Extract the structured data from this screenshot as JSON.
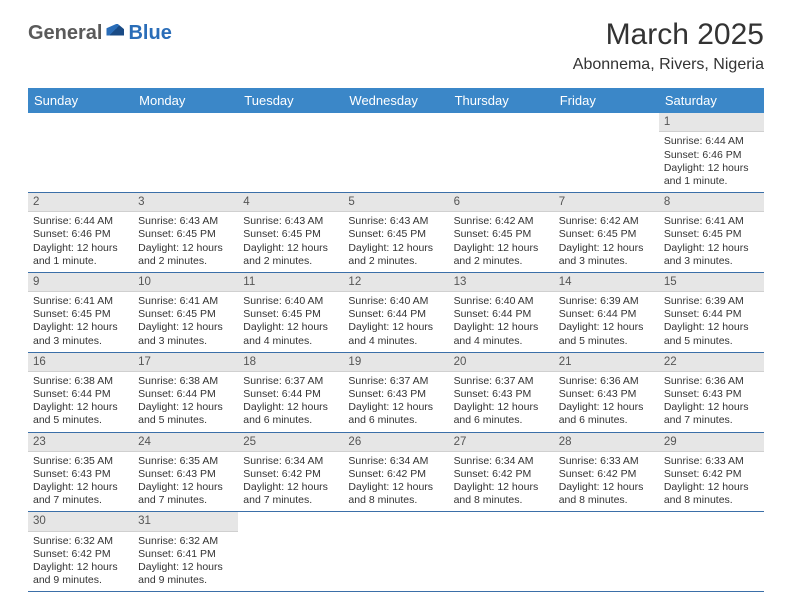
{
  "logo": {
    "part1": "General",
    "part2": "Blue"
  },
  "title": "March 2025",
  "location": "Abonnema, Rivers, Nigeria",
  "colors": {
    "header_bg": "#3b87c8",
    "header_text": "#ffffff",
    "grid_border": "#3b6fa8",
    "daynum_bg": "#e6e6e6",
    "logo_gray": "#5a5a5a",
    "logo_blue": "#2a6db8"
  },
  "dayNames": [
    "Sunday",
    "Monday",
    "Tuesday",
    "Wednesday",
    "Thursday",
    "Friday",
    "Saturday"
  ],
  "weeks": [
    [
      {
        "n": "",
        "sr": "",
        "ss": "",
        "dl": ""
      },
      {
        "n": "",
        "sr": "",
        "ss": "",
        "dl": ""
      },
      {
        "n": "",
        "sr": "",
        "ss": "",
        "dl": ""
      },
      {
        "n": "",
        "sr": "",
        "ss": "",
        "dl": ""
      },
      {
        "n": "",
        "sr": "",
        "ss": "",
        "dl": ""
      },
      {
        "n": "",
        "sr": "",
        "ss": "",
        "dl": ""
      },
      {
        "n": "1",
        "sr": "Sunrise: 6:44 AM",
        "ss": "Sunset: 6:46 PM",
        "dl": "Daylight: 12 hours and 1 minute."
      }
    ],
    [
      {
        "n": "2",
        "sr": "Sunrise: 6:44 AM",
        "ss": "Sunset: 6:46 PM",
        "dl": "Daylight: 12 hours and 1 minute."
      },
      {
        "n": "3",
        "sr": "Sunrise: 6:43 AM",
        "ss": "Sunset: 6:45 PM",
        "dl": "Daylight: 12 hours and 2 minutes."
      },
      {
        "n": "4",
        "sr": "Sunrise: 6:43 AM",
        "ss": "Sunset: 6:45 PM",
        "dl": "Daylight: 12 hours and 2 minutes."
      },
      {
        "n": "5",
        "sr": "Sunrise: 6:43 AM",
        "ss": "Sunset: 6:45 PM",
        "dl": "Daylight: 12 hours and 2 minutes."
      },
      {
        "n": "6",
        "sr": "Sunrise: 6:42 AM",
        "ss": "Sunset: 6:45 PM",
        "dl": "Daylight: 12 hours and 2 minutes."
      },
      {
        "n": "7",
        "sr": "Sunrise: 6:42 AM",
        "ss": "Sunset: 6:45 PM",
        "dl": "Daylight: 12 hours and 3 minutes."
      },
      {
        "n": "8",
        "sr": "Sunrise: 6:41 AM",
        "ss": "Sunset: 6:45 PM",
        "dl": "Daylight: 12 hours and 3 minutes."
      }
    ],
    [
      {
        "n": "9",
        "sr": "Sunrise: 6:41 AM",
        "ss": "Sunset: 6:45 PM",
        "dl": "Daylight: 12 hours and 3 minutes."
      },
      {
        "n": "10",
        "sr": "Sunrise: 6:41 AM",
        "ss": "Sunset: 6:45 PM",
        "dl": "Daylight: 12 hours and 3 minutes."
      },
      {
        "n": "11",
        "sr": "Sunrise: 6:40 AM",
        "ss": "Sunset: 6:45 PM",
        "dl": "Daylight: 12 hours and 4 minutes."
      },
      {
        "n": "12",
        "sr": "Sunrise: 6:40 AM",
        "ss": "Sunset: 6:44 PM",
        "dl": "Daylight: 12 hours and 4 minutes."
      },
      {
        "n": "13",
        "sr": "Sunrise: 6:40 AM",
        "ss": "Sunset: 6:44 PM",
        "dl": "Daylight: 12 hours and 4 minutes."
      },
      {
        "n": "14",
        "sr": "Sunrise: 6:39 AM",
        "ss": "Sunset: 6:44 PM",
        "dl": "Daylight: 12 hours and 5 minutes."
      },
      {
        "n": "15",
        "sr": "Sunrise: 6:39 AM",
        "ss": "Sunset: 6:44 PM",
        "dl": "Daylight: 12 hours and 5 minutes."
      }
    ],
    [
      {
        "n": "16",
        "sr": "Sunrise: 6:38 AM",
        "ss": "Sunset: 6:44 PM",
        "dl": "Daylight: 12 hours and 5 minutes."
      },
      {
        "n": "17",
        "sr": "Sunrise: 6:38 AM",
        "ss": "Sunset: 6:44 PM",
        "dl": "Daylight: 12 hours and 5 minutes."
      },
      {
        "n": "18",
        "sr": "Sunrise: 6:37 AM",
        "ss": "Sunset: 6:44 PM",
        "dl": "Daylight: 12 hours and 6 minutes."
      },
      {
        "n": "19",
        "sr": "Sunrise: 6:37 AM",
        "ss": "Sunset: 6:43 PM",
        "dl": "Daylight: 12 hours and 6 minutes."
      },
      {
        "n": "20",
        "sr": "Sunrise: 6:37 AM",
        "ss": "Sunset: 6:43 PM",
        "dl": "Daylight: 12 hours and 6 minutes."
      },
      {
        "n": "21",
        "sr": "Sunrise: 6:36 AM",
        "ss": "Sunset: 6:43 PM",
        "dl": "Daylight: 12 hours and 6 minutes."
      },
      {
        "n": "22",
        "sr": "Sunrise: 6:36 AM",
        "ss": "Sunset: 6:43 PM",
        "dl": "Daylight: 12 hours and 7 minutes."
      }
    ],
    [
      {
        "n": "23",
        "sr": "Sunrise: 6:35 AM",
        "ss": "Sunset: 6:43 PM",
        "dl": "Daylight: 12 hours and 7 minutes."
      },
      {
        "n": "24",
        "sr": "Sunrise: 6:35 AM",
        "ss": "Sunset: 6:43 PM",
        "dl": "Daylight: 12 hours and 7 minutes."
      },
      {
        "n": "25",
        "sr": "Sunrise: 6:34 AM",
        "ss": "Sunset: 6:42 PM",
        "dl": "Daylight: 12 hours and 7 minutes."
      },
      {
        "n": "26",
        "sr": "Sunrise: 6:34 AM",
        "ss": "Sunset: 6:42 PM",
        "dl": "Daylight: 12 hours and 8 minutes."
      },
      {
        "n": "27",
        "sr": "Sunrise: 6:34 AM",
        "ss": "Sunset: 6:42 PM",
        "dl": "Daylight: 12 hours and 8 minutes."
      },
      {
        "n": "28",
        "sr": "Sunrise: 6:33 AM",
        "ss": "Sunset: 6:42 PM",
        "dl": "Daylight: 12 hours and 8 minutes."
      },
      {
        "n": "29",
        "sr": "Sunrise: 6:33 AM",
        "ss": "Sunset: 6:42 PM",
        "dl": "Daylight: 12 hours and 8 minutes."
      }
    ],
    [
      {
        "n": "30",
        "sr": "Sunrise: 6:32 AM",
        "ss": "Sunset: 6:42 PM",
        "dl": "Daylight: 12 hours and 9 minutes."
      },
      {
        "n": "31",
        "sr": "Sunrise: 6:32 AM",
        "ss": "Sunset: 6:41 PM",
        "dl": "Daylight: 12 hours and 9 minutes."
      },
      {
        "n": "",
        "sr": "",
        "ss": "",
        "dl": ""
      },
      {
        "n": "",
        "sr": "",
        "ss": "",
        "dl": ""
      },
      {
        "n": "",
        "sr": "",
        "ss": "",
        "dl": ""
      },
      {
        "n": "",
        "sr": "",
        "ss": "",
        "dl": ""
      },
      {
        "n": "",
        "sr": "",
        "ss": "",
        "dl": ""
      }
    ]
  ]
}
